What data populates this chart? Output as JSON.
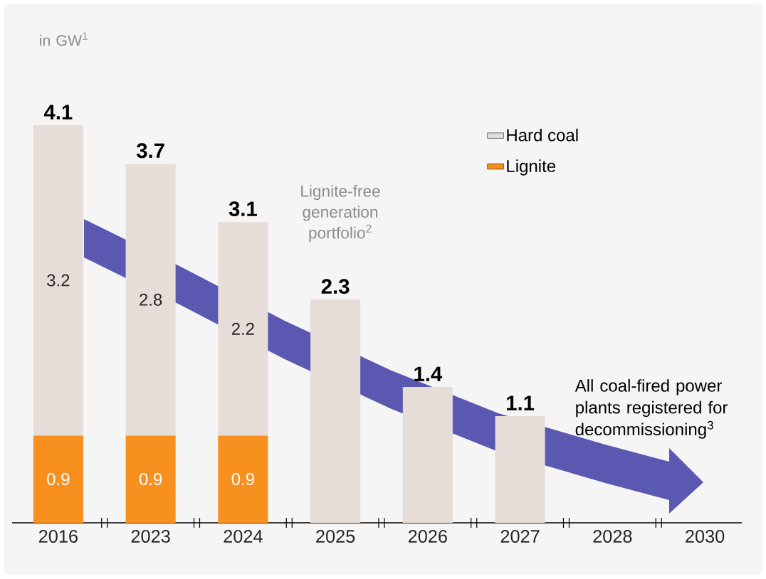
{
  "chart_data": {
    "type": "bar",
    "stacked": true,
    "categories": [
      "2016",
      "2023",
      "2024",
      "2025",
      "2026",
      "2027",
      "2028",
      "2030"
    ],
    "series": [
      {
        "name": "Lignite",
        "color": "#f7901e",
        "values": [
          0.9,
          0.9,
          0.9,
          null,
          null,
          null,
          null,
          null
        ],
        "value_labels": [
          "0.9",
          "0.9",
          "0.9",
          null,
          null,
          null,
          null,
          null
        ]
      },
      {
        "name": "Hard coal",
        "color": "#e6ddd8",
        "values": [
          3.2,
          2.8,
          2.2,
          2.3,
          1.4,
          1.1,
          null,
          null
        ],
        "value_labels": [
          "3.2",
          "2.8",
          "2.2",
          null,
          null,
          null,
          null,
          null
        ]
      }
    ],
    "totals": [
      "4.1",
      "3.7",
      "3.1",
      "2.3",
      "1.4",
      "1.1",
      null,
      null
    ],
    "legend": "top right",
    "annotations": [
      "in GW$^{1}$",
      "Lignite-free generation portfolio$^{2}$",
      "All coal-fired power plants registered for decommissioning$^{3}$"
    ]
  }
}
